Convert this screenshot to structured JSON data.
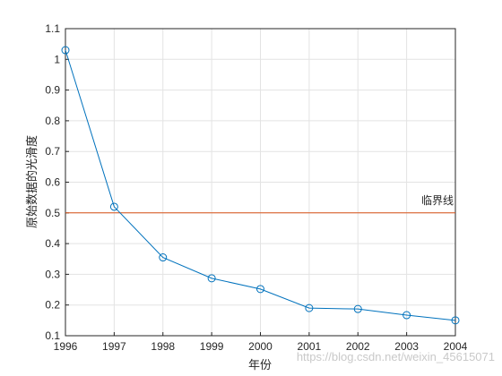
{
  "chart_data": {
    "type": "line",
    "x": [
      1996,
      1997,
      1998,
      1999,
      2000,
      2001,
      2002,
      2003,
      2004
    ],
    "series": [
      {
        "values": [
          1.03,
          0.52,
          0.355,
          0.287,
          0.252,
          0.19,
          0.187,
          0.167,
          0.15
        ],
        "color": "#0072bd",
        "marker": "circle"
      }
    ],
    "reference_line": {
      "y": 0.5,
      "color": "#d95319",
      "label": "临界线"
    },
    "xlabel": "年份",
    "ylabel": "原始数据的光滑度",
    "xlim": [
      1996,
      2004
    ],
    "ylim": [
      0.1,
      1.1
    ],
    "xticks": [
      "1996",
      "1997",
      "1998",
      "1999",
      "2000",
      "2001",
      "2002",
      "2003",
      "2004"
    ],
    "yticks": [
      "0.1",
      "0.2",
      "0.3",
      "0.4",
      "0.5",
      "0.6",
      "0.7",
      "0.8",
      "0.9",
      "1",
      "1.1"
    ],
    "grid": true
  },
  "watermark": "https://blog.csdn.net/weixin_45615071"
}
